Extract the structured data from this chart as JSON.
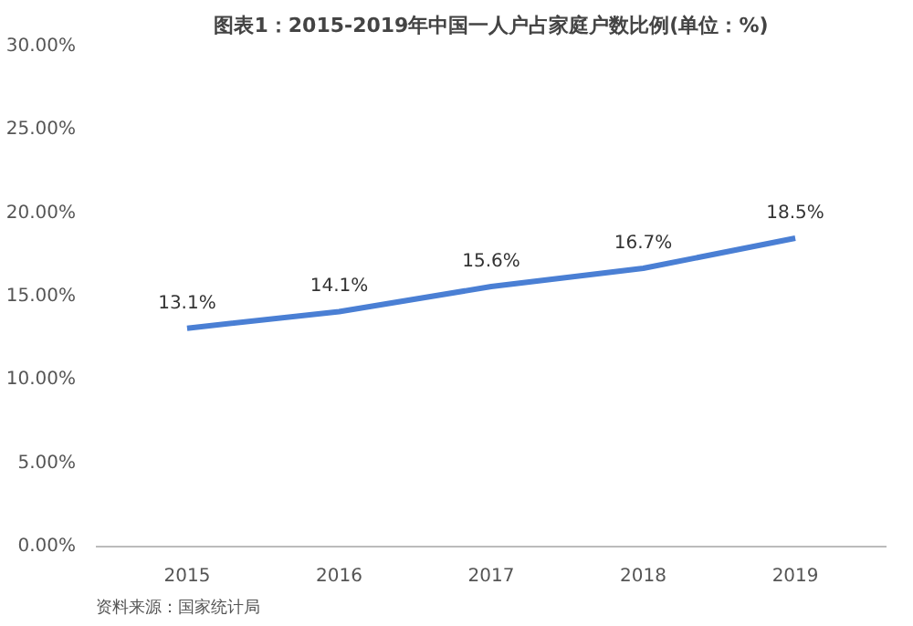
{
  "chart_data": {
    "type": "line",
    "title": "图表1：2015-2019年中国一人户占家庭户数比例(单位：%)",
    "categories": [
      "2015",
      "2016",
      "2017",
      "2018",
      "2019"
    ],
    "series": [
      {
        "color": "#4a7fd4",
        "values": [
          13.1,
          14.1,
          15.6,
          16.7,
          18.5
        ],
        "value_labels": [
          "13.1%",
          "14.1%",
          "15.6%",
          "16.7%",
          "18.5%"
        ]
      }
    ],
    "ylim": [
      0,
      30
    ],
    "yticks": [
      {
        "value": 0,
        "label": "0.00%"
      },
      {
        "value": 5,
        "label": "5.00%"
      },
      {
        "value": 10,
        "label": "10.00%"
      },
      {
        "value": 15,
        "label": "15.00%"
      },
      {
        "value": 20,
        "label": "20.00%"
      },
      {
        "value": 25,
        "label": "25.00%"
      },
      {
        "value": 30,
        "label": "30.00%"
      }
    ],
    "grid": false,
    "marker": "none",
    "line_style": "solid",
    "annotations": [
      "资料来源：国家统计局"
    ]
  }
}
